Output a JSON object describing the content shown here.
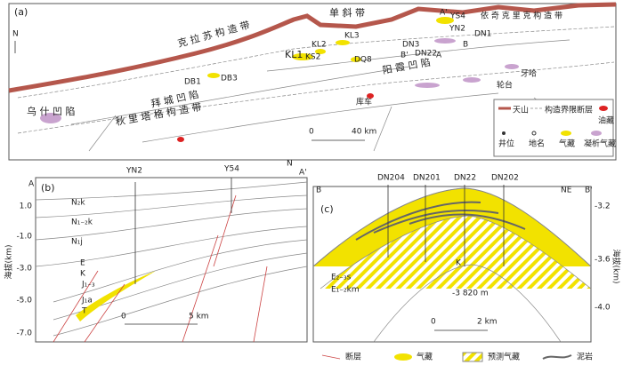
{
  "map": {
    "panel": "(a)",
    "north": "N",
    "places": [
      "单 斜 带",
      "依 奇 克 里 克 构 造 带",
      "克 拉 苏 构 造 带",
      "拜 城 凹 陷",
      "阳 霞 凹 陷",
      "乌 什 凹 陷",
      "秋 里 塔 格 构 造 带",
      "库车",
      "轮台",
      "牙哈"
    ],
    "wells": [
      "A'",
      "YS4",
      "YN2",
      "DN1",
      "B",
      "B'",
      "DN3",
      "DN22",
      "A",
      "KL3",
      "KL2",
      "KL1",
      "KS2",
      "DQ8",
      "DB1",
      "DB3"
    ],
    "scale": [
      "0",
      "40 km"
    ],
    "legend": [
      "天山",
      "构造界限",
      "断层",
      "油藏",
      "井位",
      "地名",
      "气藏",
      "凝析气藏"
    ]
  },
  "section_b": {
    "panel": "(b)",
    "wells": [
      "YN2",
      "Y54"
    ],
    "ends": [
      "A",
      "A'"
    ],
    "north": "N",
    "y_axis_label": "海拔(km)",
    "yticks": [
      "1.0",
      "-1.0",
      "-3.0",
      "-5.0",
      "-7.0"
    ],
    "layers": [
      "N₂k",
      "N₁₋₂k",
      "N₁j",
      "E",
      "K",
      "J₁₋₃",
      "J₁a",
      "T"
    ],
    "scale": [
      "0",
      "5 km"
    ]
  },
  "section_c": {
    "panel": "(c)",
    "wells": [
      "DN204",
      "DN201",
      "DN22",
      "DN202"
    ],
    "ends": [
      "B",
      "B'"
    ],
    "direction": "NE",
    "y_axis_label": "海拔(km)",
    "yticks": [
      "-3.2",
      "-3.6",
      "-4.0"
    ],
    "layers": [
      "E₂₋₃s",
      "E₁₋₂km",
      "K"
    ],
    "contact": "-3 820 m",
    "scale": [
      "0",
      "2 km"
    ]
  },
  "legend": [
    "断层",
    "气藏",
    "预测气藏",
    "泥岩"
  ]
}
